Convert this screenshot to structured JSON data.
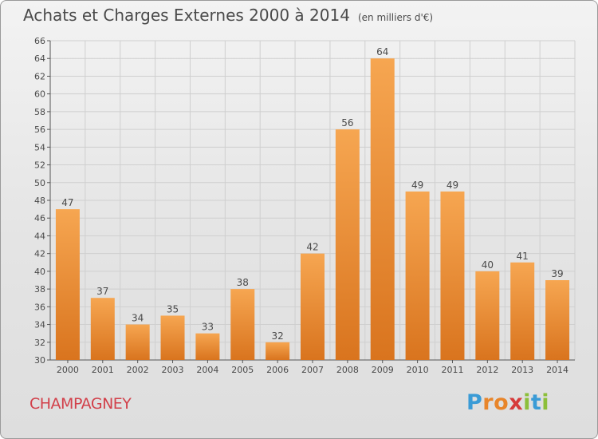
{
  "header": {
    "title": "Achats et Charges Externes 2000 à 2014",
    "unit": "(en milliers d'€)"
  },
  "footer": {
    "commune": "CHAMPAGNEY",
    "brand_letters": [
      "P",
      "r",
      "o",
      "x",
      "i",
      "t",
      "i"
    ]
  },
  "colors": {
    "bar_light": "#f6a651",
    "bar_dark": "#d9741e",
    "grid": "#cfcfcf",
    "text": "#4a4a4a"
  },
  "chart_data": {
    "type": "bar",
    "title": "Achats et Charges Externes 2000 à 2014",
    "subtitle": "(en milliers d'€)",
    "categories": [
      "2000",
      "2001",
      "2002",
      "2003",
      "2004",
      "2005",
      "2006",
      "2007",
      "2008",
      "2009",
      "2010",
      "2011",
      "2012",
      "2013",
      "2014"
    ],
    "values": [
      47,
      37,
      34,
      35,
      33,
      38,
      32,
      42,
      56,
      64,
      49,
      49,
      40,
      41,
      39
    ],
    "ylim": [
      30,
      66
    ],
    "yticks": [
      30,
      32,
      34,
      36,
      38,
      40,
      42,
      44,
      46,
      48,
      50,
      52,
      54,
      56,
      58,
      60,
      62,
      64,
      66
    ],
    "grid": true,
    "data_labels": true
  }
}
